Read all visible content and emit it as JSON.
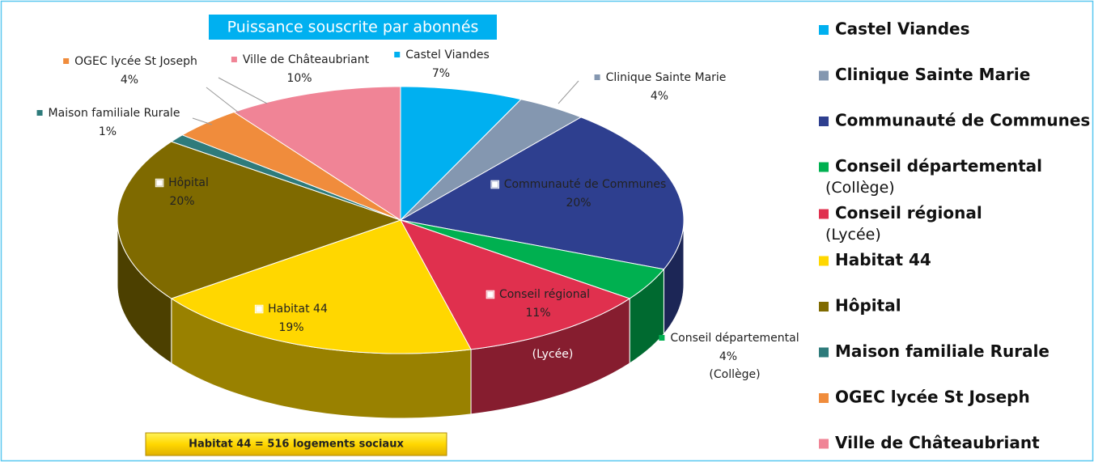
{
  "chart_data": {
    "type": "pie3d",
    "title": "Puissance souscrite par abonnés",
    "annotation": "Habitat 44 = 516 logements sociaux",
    "categories": [
      "Castel Viandes",
      "Clinique Sainte Marie",
      "Communauté de Communes",
      "Conseil départemental",
      "Conseil régional",
      "Habitat 44",
      "Hôpital",
      "Maison familiale Rurale",
      "OGEC lycée St Joseph",
      "Ville de Châteaubriant"
    ],
    "category_notes": [
      null,
      null,
      null,
      "(Collège)",
      "(Lycée)",
      null,
      null,
      null,
      null,
      null
    ],
    "values": [
      7,
      4,
      20,
      4,
      11,
      19,
      20,
      1,
      4,
      10
    ],
    "value_labels": [
      "7%",
      "4%",
      "20%",
      "4%",
      "11%",
      "19%",
      "20%",
      "1%",
      "4%",
      "10%"
    ],
    "colors": [
      "#00b0f0",
      "#8497b0",
      "#2e3f8f",
      "#00b050",
      "#e0304e",
      "#ffd700",
      "#7f6a00",
      "#2e7b7b",
      "#f08c3c",
      "#f08496"
    ],
    "legend": "right"
  }
}
